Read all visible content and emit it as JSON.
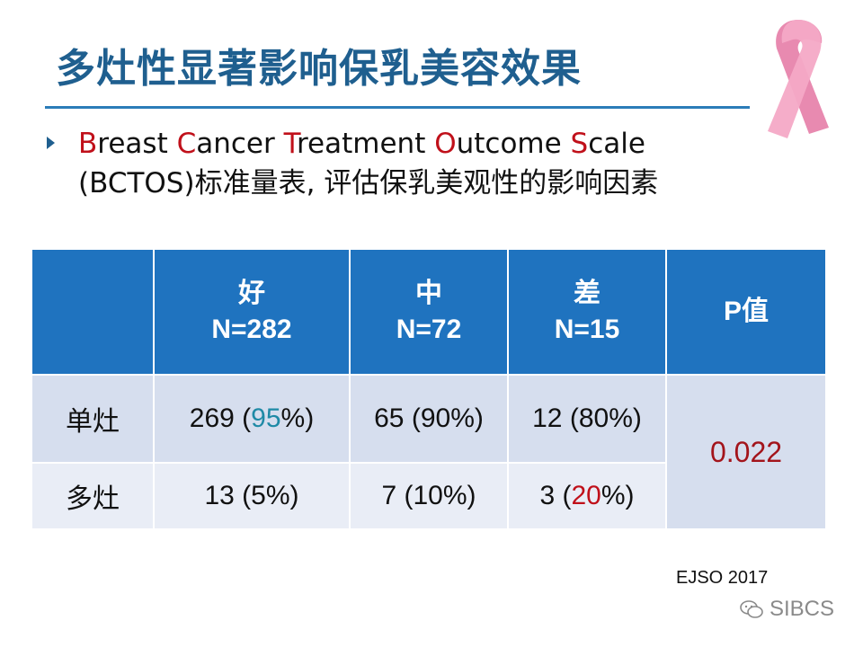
{
  "slide": {
    "title": "多灶性显著影响保乳美容效果",
    "bullet": {
      "line1": [
        {
          "text": "B",
          "accent": true
        },
        {
          "text": "reast ",
          "accent": false
        },
        {
          "text": "C",
          "accent": true
        },
        {
          "text": "ancer ",
          "accent": false
        },
        {
          "text": "T",
          "accent": true
        },
        {
          "text": "reatment ",
          "accent": false
        },
        {
          "text": "O",
          "accent": true
        },
        {
          "text": "utcome ",
          "accent": false
        },
        {
          "text": "S",
          "accent": true
        },
        {
          "text": "cale",
          "accent": false
        }
      ],
      "line2": "(BCTOS)标准量表, 评估保乳美观性的影响因素"
    },
    "table": {
      "headers": [
        {
          "name": "",
          "n": ""
        },
        {
          "name": "好",
          "n": "N=282"
        },
        {
          "name": "中",
          "n": "N=72"
        },
        {
          "name": "差",
          "n": "N=15"
        },
        {
          "name": "P值",
          "n": ""
        }
      ],
      "rows": [
        {
          "label": "单灶",
          "cells": [
            {
              "count": "269 (",
              "pct": "95",
              "close": "%)",
              "pct_color": "teal"
            },
            {
              "count": "65 (",
              "pct": "90",
              "close": "%)",
              "pct_color": ""
            },
            {
              "count": "12 (",
              "pct": "80",
              "close": "%)",
              "pct_color": ""
            }
          ]
        },
        {
          "label": "多灶",
          "cells": [
            {
              "count": "13 (",
              "pct": "5",
              "close": "%)",
              "pct_color": ""
            },
            {
              "count": "7 (",
              "pct": "10",
              "close": "%)",
              "pct_color": ""
            },
            {
              "count": "3 (",
              "pct": "20",
              "close": "%)",
              "pct_color": "red"
            }
          ]
        }
      ],
      "p_value": "0.022"
    },
    "source": "EJSO 2017",
    "watermark": "SIBCS",
    "colors": {
      "title": "#1f5f8f",
      "header_bg": "#1f73bf",
      "accent_red": "#c0101a",
      "teal": "#1f8aa6"
    },
    "icons": [
      "bullet-triangle-icon",
      "pink-ribbon-icon",
      "wechat-icon"
    ]
  }
}
